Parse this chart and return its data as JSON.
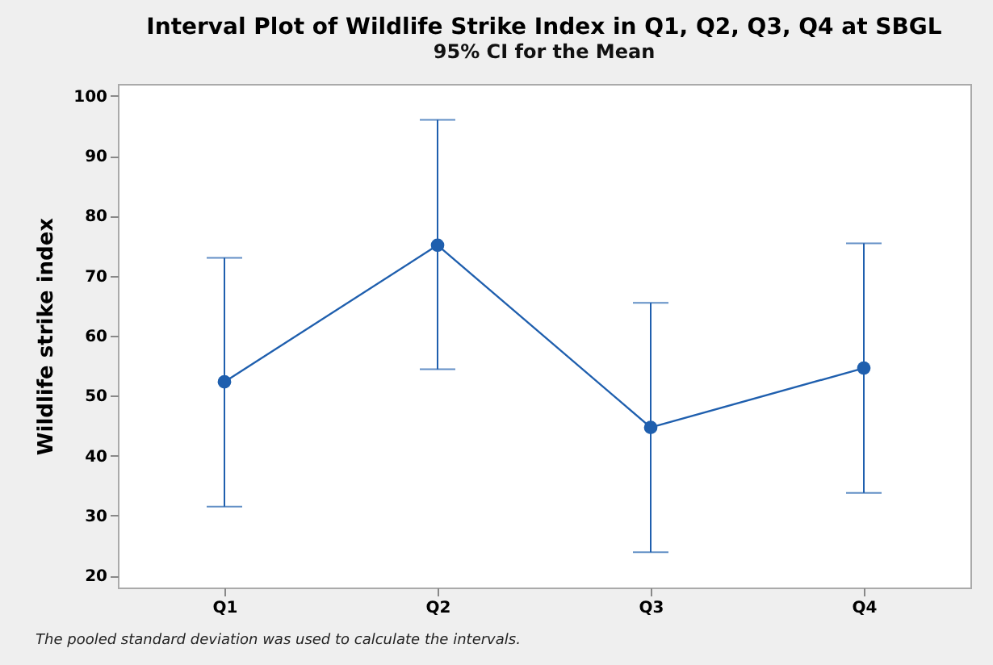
{
  "chart_data": {
    "type": "line",
    "title": "Interval Plot of Wildlife Strike Index in Q1, Q2, Q3, Q4 at SBGL",
    "subtitle": "95% CI for the Mean",
    "ylabel": "Wildlife strike index",
    "categories": [
      "Q1",
      "Q2",
      "Q3",
      "Q4"
    ],
    "series": [
      {
        "color": "#1f5fae",
        "values": [
          52.3,
          75.1,
          44.7,
          54.6
        ],
        "errors": [
          [
            31.5,
            73.0
          ],
          [
            54.4,
            96.0
          ],
          [
            23.9,
            65.5
          ],
          [
            33.8,
            75.4
          ]
        ]
      }
    ],
    "ylim": [
      18,
      102
    ],
    "yticks": [
      20,
      30,
      40,
      50,
      60,
      70,
      80,
      90,
      100
    ],
    "grid": false,
    "marker": "circle",
    "line_style": "solid",
    "annotations": [
      "The pooled standard deviation was used to calculate the intervals."
    ]
  }
}
